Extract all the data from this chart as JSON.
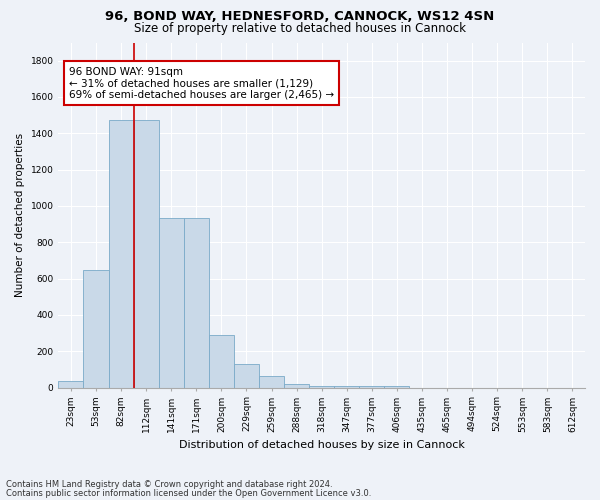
{
  "title_line1": "96, BOND WAY, HEDNESFORD, CANNOCK, WS12 4SN",
  "title_line2": "Size of property relative to detached houses in Cannock",
  "xlabel": "Distribution of detached houses by size in Cannock",
  "ylabel": "Number of detached properties",
  "categories": [
    "23sqm",
    "53sqm",
    "82sqm",
    "112sqm",
    "141sqm",
    "171sqm",
    "200sqm",
    "229sqm",
    "259sqm",
    "288sqm",
    "318sqm",
    "347sqm",
    "377sqm",
    "406sqm",
    "435sqm",
    "465sqm",
    "494sqm",
    "524sqm",
    "553sqm",
    "583sqm",
    "612sqm"
  ],
  "values": [
    38,
    650,
    1475,
    1475,
    935,
    935,
    290,
    128,
    63,
    20,
    10,
    10,
    10,
    8,
    0,
    0,
    0,
    0,
    0,
    0,
    0
  ],
  "bar_color": "#c9d9e8",
  "bar_edge_color": "#7aaac8",
  "vline_color": "#cc0000",
  "vline_x_index": 2,
  "annotation_box_text": "96 BOND WAY: 91sqm\n← 31% of detached houses are smaller (1,129)\n69% of semi-detached houses are larger (2,465) →",
  "annotation_box_color": "#cc0000",
  "annotation_box_bg": "#ffffff",
  "ylim": [
    0,
    1900
  ],
  "yticks": [
    0,
    200,
    400,
    600,
    800,
    1000,
    1200,
    1400,
    1600,
    1800
  ],
  "footnote_line1": "Contains HM Land Registry data © Crown copyright and database right 2024.",
  "footnote_line2": "Contains public sector information licensed under the Open Government Licence v3.0.",
  "background_color": "#eef2f8",
  "grid_color": "#ffffff",
  "title_fontsize": 9.5,
  "subtitle_fontsize": 8.5,
  "axis_label_fontsize": 7.5,
  "tick_fontsize": 6.5,
  "annotation_fontsize": 7.5,
  "footnote_fontsize": 6.0
}
